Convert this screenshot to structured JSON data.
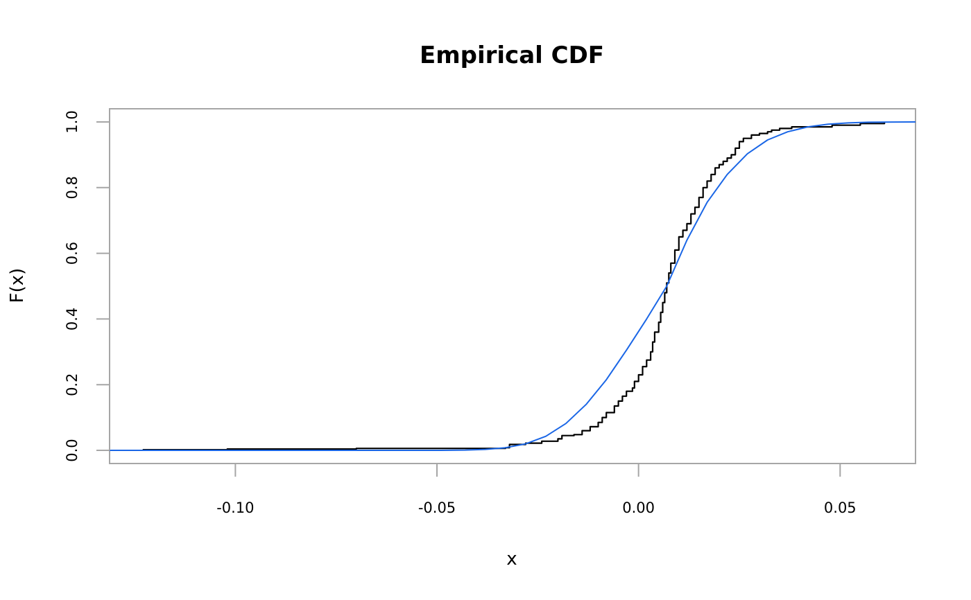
{
  "chart_data": {
    "type": "line",
    "title": "Empirical CDF",
    "xlabel": "x",
    "ylabel": "F(x)",
    "xlim": [
      -0.1312,
      0.0687
    ],
    "ylim": [
      -0.04,
      1.04
    ],
    "x_ticks": [
      -0.1,
      -0.05,
      0.0,
      0.05
    ],
    "x_tick_labels": [
      "-0.10",
      "-0.05",
      "0.00",
      "0.05"
    ],
    "y_ticks": [
      0.0,
      0.2,
      0.4,
      0.6,
      0.8,
      1.0
    ],
    "y_tick_labels": [
      "0.0",
      "0.2",
      "0.4",
      "0.6",
      "0.8",
      "1.0"
    ],
    "grid": false,
    "series": [
      {
        "kind": "step",
        "color": "#000000",
        "points": [
          [
            -0.123,
            0.002
          ],
          [
            -0.102,
            0.004
          ],
          [
            -0.07,
            0.006
          ],
          [
            -0.033,
            0.008
          ],
          [
            -0.032,
            0.018
          ],
          [
            -0.028,
            0.022
          ],
          [
            -0.024,
            0.028
          ],
          [
            -0.02,
            0.035
          ],
          [
            -0.019,
            0.045
          ],
          [
            -0.016,
            0.048
          ],
          [
            -0.014,
            0.06
          ],
          [
            -0.012,
            0.072
          ],
          [
            -0.01,
            0.085
          ],
          [
            -0.009,
            0.1
          ],
          [
            -0.008,
            0.115
          ],
          [
            -0.006,
            0.135
          ],
          [
            -0.005,
            0.15
          ],
          [
            -0.004,
            0.165
          ],
          [
            -0.003,
            0.18
          ],
          [
            -0.0015,
            0.19
          ],
          [
            -0.001,
            0.21
          ],
          [
            0.0,
            0.23
          ],
          [
            0.001,
            0.255
          ],
          [
            0.002,
            0.275
          ],
          [
            0.003,
            0.3
          ],
          [
            0.0035,
            0.33
          ],
          [
            0.004,
            0.36
          ],
          [
            0.005,
            0.39
          ],
          [
            0.0055,
            0.42
          ],
          [
            0.006,
            0.45
          ],
          [
            0.0065,
            0.48
          ],
          [
            0.007,
            0.51
          ],
          [
            0.0075,
            0.54
          ],
          [
            0.008,
            0.57
          ],
          [
            0.009,
            0.61
          ],
          [
            0.01,
            0.65
          ],
          [
            0.011,
            0.67
          ],
          [
            0.012,
            0.69
          ],
          [
            0.013,
            0.72
          ],
          [
            0.014,
            0.74
          ],
          [
            0.015,
            0.77
          ],
          [
            0.016,
            0.8
          ],
          [
            0.017,
            0.82
          ],
          [
            0.018,
            0.84
          ],
          [
            0.019,
            0.86
          ],
          [
            0.02,
            0.87
          ],
          [
            0.021,
            0.88
          ],
          [
            0.022,
            0.89
          ],
          [
            0.023,
            0.9
          ],
          [
            0.024,
            0.92
          ],
          [
            0.025,
            0.94
          ],
          [
            0.026,
            0.95
          ],
          [
            0.028,
            0.96
          ],
          [
            0.03,
            0.965
          ],
          [
            0.032,
            0.97
          ],
          [
            0.033,
            0.975
          ],
          [
            0.035,
            0.98
          ],
          [
            0.038,
            0.985
          ],
          [
            0.048,
            0.99
          ],
          [
            0.055,
            0.995
          ],
          [
            0.061,
            0.998
          ]
        ]
      },
      {
        "kind": "line",
        "color": "#1a66e6",
        "points": [
          [
            -0.1312,
            0.0
          ],
          [
            -0.05,
            0.0
          ],
          [
            -0.043,
            0.001
          ],
          [
            -0.038,
            0.003
          ],
          [
            -0.033,
            0.008
          ],
          [
            -0.028,
            0.02
          ],
          [
            -0.023,
            0.043
          ],
          [
            -0.018,
            0.082
          ],
          [
            -0.013,
            0.14
          ],
          [
            -0.008,
            0.215
          ],
          [
            -0.003,
            0.305
          ],
          [
            0.002,
            0.4
          ],
          [
            0.007,
            0.5
          ],
          [
            0.012,
            0.64
          ],
          [
            0.017,
            0.755
          ],
          [
            0.022,
            0.84
          ],
          [
            0.027,
            0.903
          ],
          [
            0.032,
            0.945
          ],
          [
            0.037,
            0.97
          ],
          [
            0.042,
            0.985
          ],
          [
            0.047,
            0.993
          ],
          [
            0.052,
            0.997
          ],
          [
            0.057,
            0.999
          ],
          [
            0.0687,
            1.0
          ]
        ]
      }
    ]
  }
}
